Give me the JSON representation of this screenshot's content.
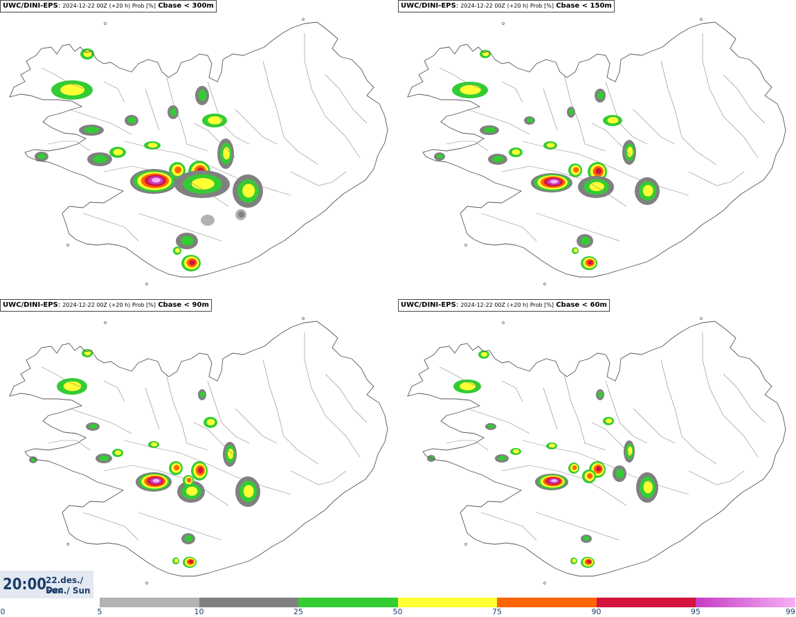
{
  "panels": [
    {
      "model": "UWC/DINI-EPS",
      "meta": "2024-12-22 00Z (+20 h) Prob [%]",
      "var": "Cbase < 300m"
    },
    {
      "model": "UWC/DINI-EPS",
      "meta": "2024-12-22 00Z (+20 h) Prob [%]",
      "var": "Cbase < 150m"
    },
    {
      "model": "UWC/DINI-EPS",
      "meta": "2024-12-22 00Z (+20 h) Prob [%]",
      "var": "Cbase < 90m"
    },
    {
      "model": "UWC/DINI-EPS",
      "meta": "2024-12-22 00Z (+20 h) Prob [%]",
      "var": "Cbase < 60m"
    }
  ],
  "time": {
    "clock": "20:00",
    "date": "22.des./ Dec",
    "day": "Sun./ Sun"
  },
  "legend": {
    "ticks": [
      "0",
      "5",
      "10",
      "25",
      "50",
      "75",
      "90",
      "95",
      "99"
    ],
    "colors": [
      "#ffffff",
      "#b3b3b3",
      "#808080",
      "#33cc33",
      "#ffff33",
      "#ff6600",
      "#d4143c",
      "#c43cc4",
      "#f5b0f5"
    ]
  }
}
